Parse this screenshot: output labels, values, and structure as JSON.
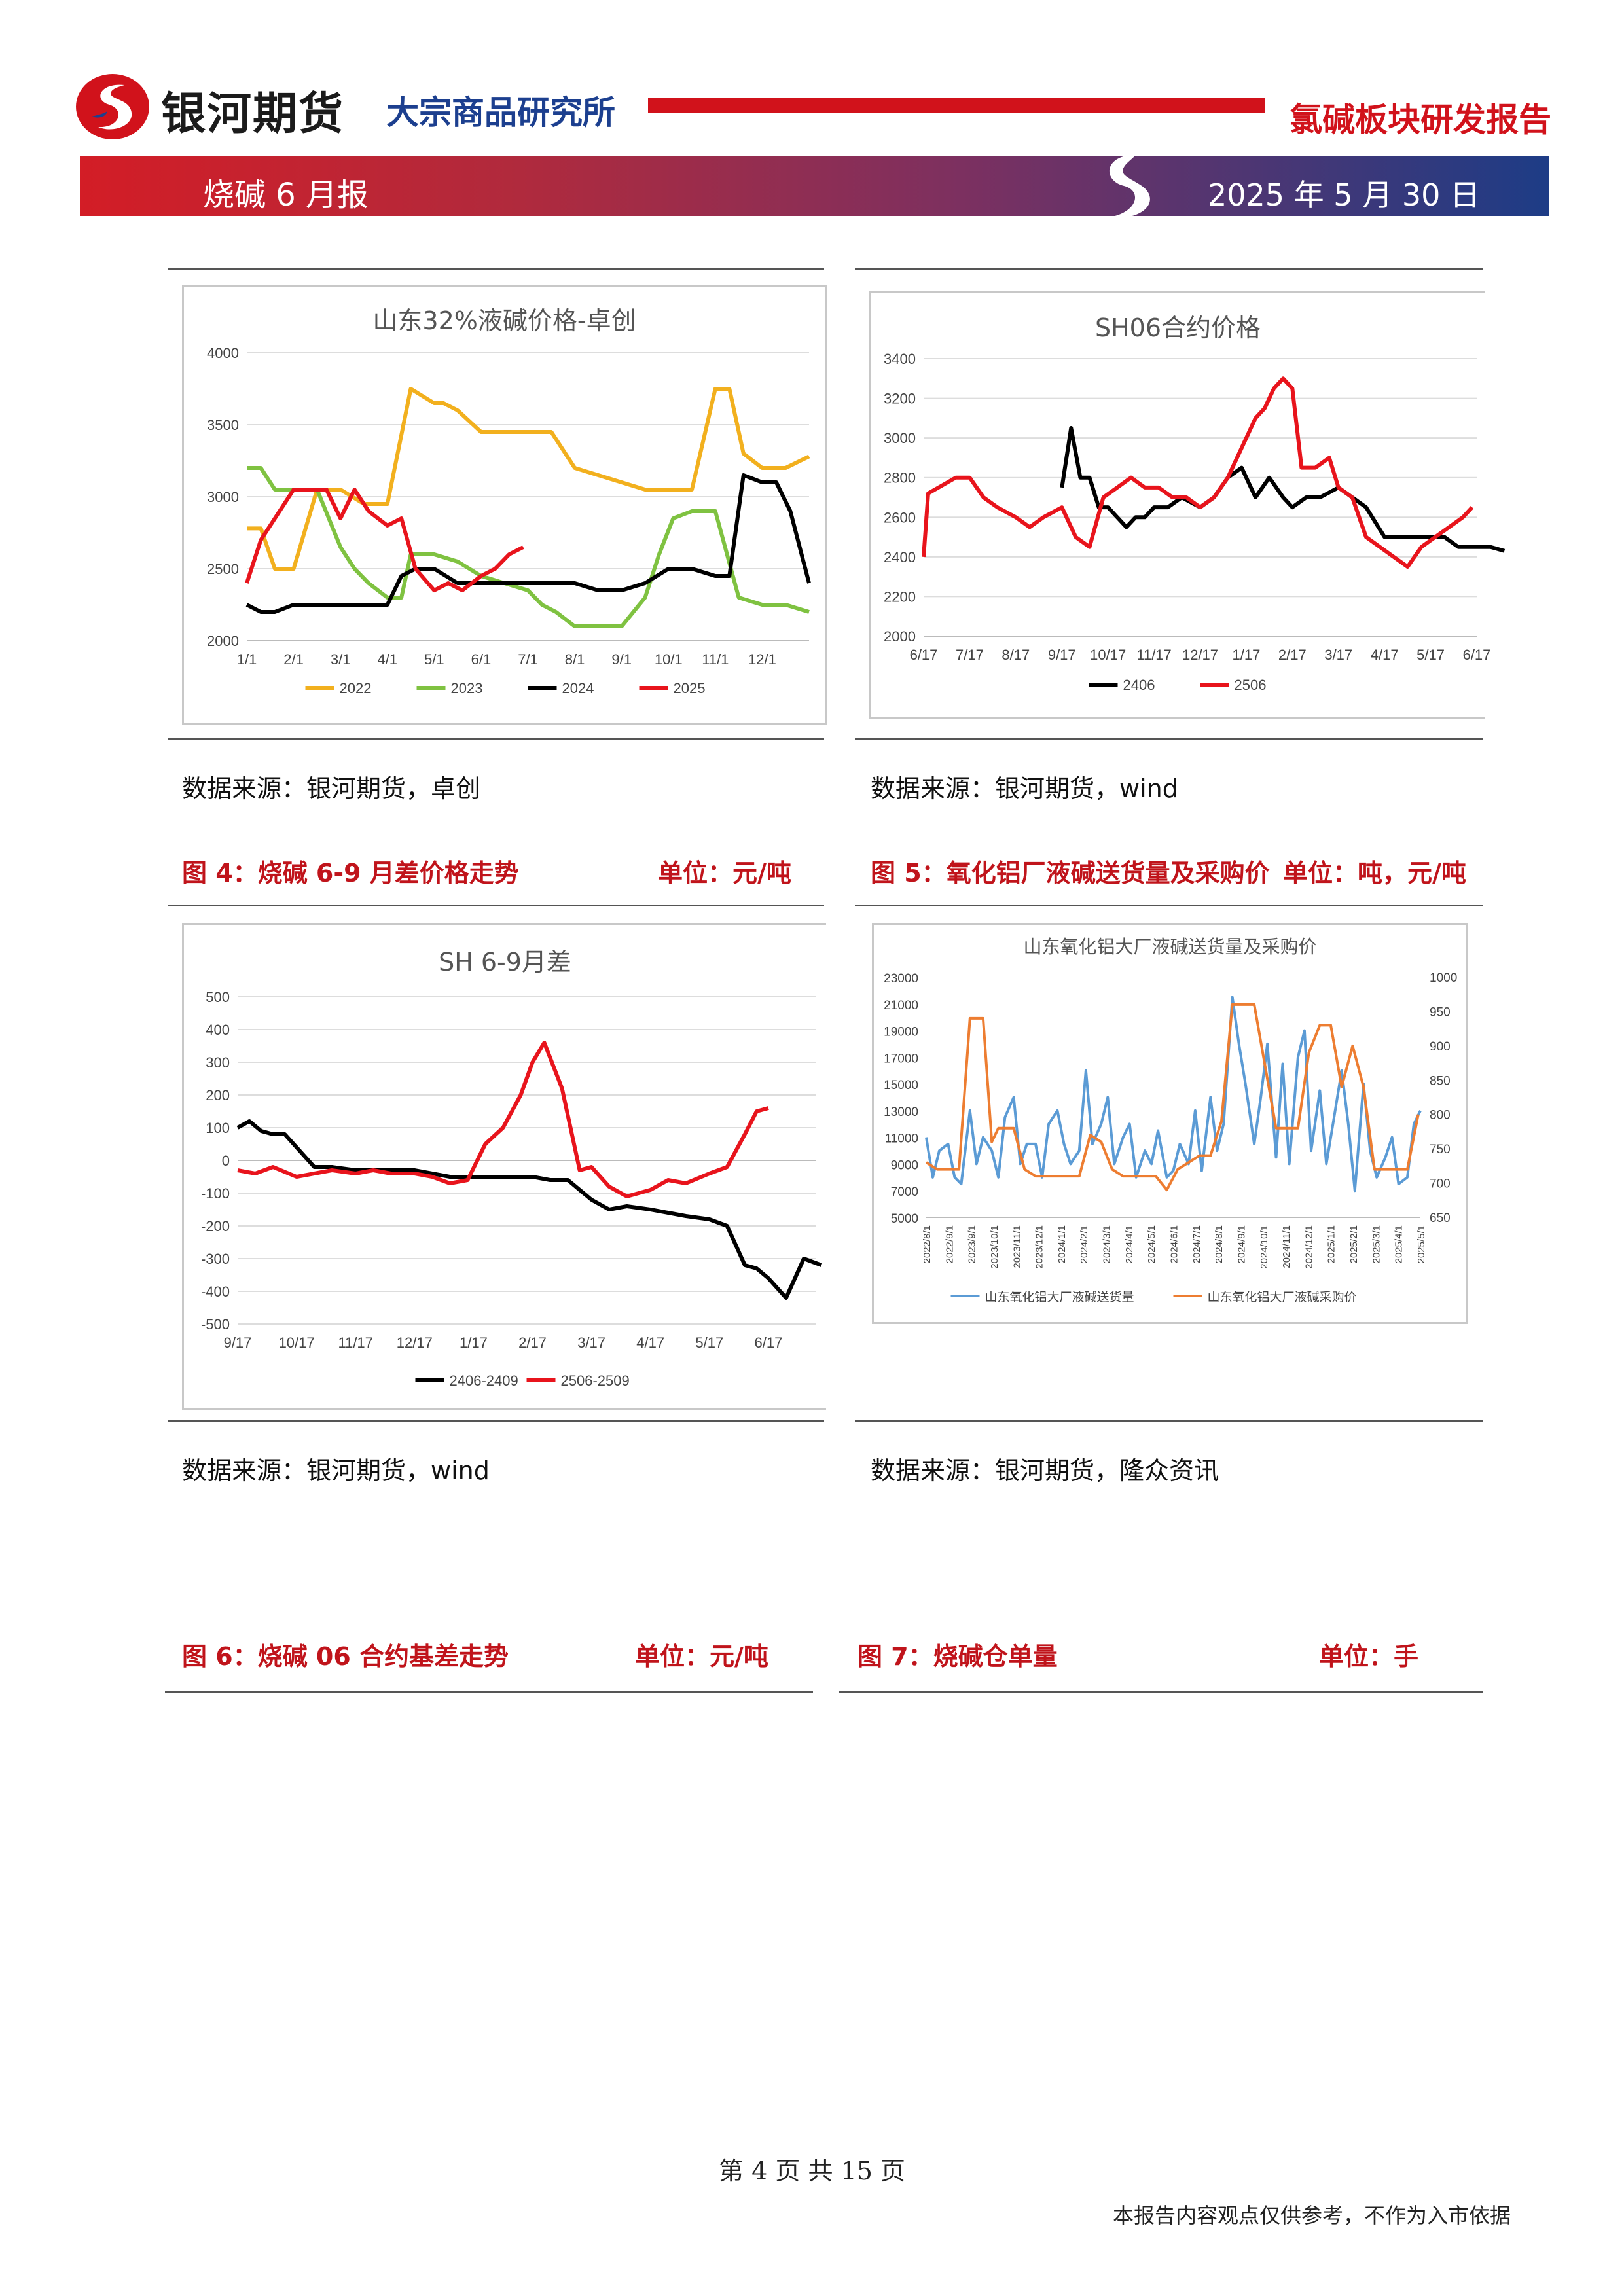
{
  "header": {
    "brand": "银河期货",
    "institute": "大宗商品研究所",
    "report_title": "氯碱板块研发报告",
    "brand_color": "#d1121b",
    "institute_color": "#1c3f8f"
  },
  "banner": {
    "title": "烧碱 6 月报",
    "date": "2025 年 5 月 30 日"
  },
  "charts": [
    {
      "source": "数据来源：银河期货，卓创",
      "chart_data": {
        "type": "line",
        "title": "山东32%液碱价格-卓创",
        "x_ticks": [
          "1/1",
          "2/1",
          "3/1",
          "4/1",
          "5/1",
          "6/1",
          "7/1",
          "8/1",
          "9/1",
          "10/1",
          "11/1",
          "12/1"
        ],
        "ylim": [
          2000,
          4000
        ],
        "y_ticks": [
          2000,
          2500,
          3000,
          3500,
          4000
        ],
        "grid": true,
        "legend_position": "bottom",
        "series": [
          {
            "name": "2022",
            "color": "#f2b01e",
            "x": [
              0,
              0.3,
              0.6,
              0.8,
              1,
              1.5,
              2,
              2.5,
              3,
              3.5,
              4,
              4.2,
              4.5,
              5,
              5.5,
              6,
              6.5,
              7,
              7.5,
              8,
              8.5,
              9,
              9.3,
              9.5,
              10,
              10.3,
              10.6,
              11,
              11.5,
              12
            ],
            "y": [
              2780,
              2780,
              2500,
              2500,
              2500,
              3050,
              3050,
              2950,
              2950,
              3750,
              3650,
              3650,
              3600,
              3450,
              3450,
              3450,
              3450,
              3200,
              3150,
              3100,
              3050,
              3050,
              3050,
              3050,
              3750,
              3750,
              3300,
              3200,
              3200,
              3280
            ]
          },
          {
            "name": "2023",
            "color": "#7fc241",
            "x": [
              0,
              0.3,
              0.6,
              1,
              1.5,
              2,
              2.3,
              2.6,
              3,
              3.3,
              3.5,
              4,
              4.5,
              5,
              5.5,
              6,
              6.3,
              6.6,
              7,
              7.3,
              7.6,
              8,
              8.5,
              8.8,
              9.1,
              9.5,
              10,
              10.5,
              11,
              11.5,
              12
            ],
            "y": [
              3200,
              3200,
              3050,
              3050,
              3050,
              2650,
              2500,
              2400,
              2300,
              2300,
              2600,
              2600,
              2550,
              2450,
              2400,
              2350,
              2250,
              2200,
              2100,
              2100,
              2100,
              2100,
              2300,
              2600,
              2850,
              2900,
              2900,
              2300,
              2250,
              2250,
              2200
            ]
          },
          {
            "name": "2024",
            "color": "#000000",
            "x": [
              0,
              0.3,
              0.6,
              1,
              1.5,
              2,
              2.5,
              3,
              3.3,
              3.6,
              4,
              4.5,
              5,
              5.5,
              6,
              6.5,
              7,
              7.5,
              8,
              8.5,
              9,
              9.5,
              10,
              10.3,
              10.6,
              11,
              11.3,
              11.6,
              12
            ],
            "y": [
              2250,
              2200,
              2200,
              2250,
              2250,
              2250,
              2250,
              2250,
              2450,
              2500,
              2500,
              2400,
              2400,
              2400,
              2400,
              2400,
              2400,
              2350,
              2350,
              2400,
              2500,
              2500,
              2450,
              2450,
              3150,
              3100,
              3100,
              2900,
              2400
            ]
          },
          {
            "name": "2025",
            "color": "#e8141c",
            "x": [
              0,
              0.3,
              0.7,
              1,
              1.3,
              1.7,
              2,
              2.3,
              2.6,
              3,
              3.3,
              3.6,
              4,
              4.3,
              4.6,
              5,
              5.3,
              5.6,
              5.9
            ],
            "y": [
              2400,
              2700,
              2900,
              3050,
              3050,
              3050,
              2850,
              3050,
              2900,
              2800,
              2850,
              2500,
              2350,
              2400,
              2350,
              2450,
              2500,
              2600,
              2650
            ]
          }
        ]
      }
    },
    {
      "source": "数据来源：银河期货，wind",
      "chart_data": {
        "type": "line",
        "title": "SH06合约价格",
        "x_ticks": [
          "6/17",
          "7/17",
          "8/17",
          "9/17",
          "10/17",
          "11/17",
          "12/17",
          "1/17",
          "2/17",
          "3/17",
          "4/17",
          "5/17",
          "6/17"
        ],
        "ylim": [
          2000,
          3400
        ],
        "y_ticks": [
          2000,
          2200,
          2400,
          2600,
          2800,
          3000,
          3200,
          3400
        ],
        "grid": true,
        "legend_position": "bottom",
        "series": [
          {
            "name": "2406",
            "color": "#000000",
            "x": [
              3,
              3.2,
              3.4,
              3.6,
              3.8,
              4,
              4.2,
              4.4,
              4.6,
              4.8,
              5,
              5.3,
              5.6,
              6,
              6.3,
              6.6,
              6.9,
              7.2,
              7.5,
              7.8,
              8,
              8.3,
              8.6,
              9,
              9.3,
              9.6,
              10,
              10.3,
              10.6,
              11,
              11.3,
              11.6,
              12,
              12.3,
              12.6
            ],
            "y": [
              2750,
              3050,
              2800,
              2800,
              2650,
              2650,
              2600,
              2550,
              2600,
              2600,
              2650,
              2650,
              2700,
              2650,
              2700,
              2800,
              2850,
              2700,
              2800,
              2700,
              2650,
              2700,
              2700,
              2750,
              2700,
              2650,
              2500,
              2500,
              2500,
              2500,
              2500,
              2450,
              2450,
              2450,
              2430
            ]
          },
          {
            "name": "2506",
            "color": "#e8141c",
            "x": [
              0,
              0.1,
              0.4,
              0.7,
              1,
              1.3,
              1.6,
              2,
              2.3,
              2.6,
              3,
              3.3,
              3.6,
              3.9,
              4.2,
              4.5,
              4.8,
              5.1,
              5.4,
              5.7,
              6,
              6.3,
              6.6,
              6.9,
              7.2,
              7.4,
              7.6,
              7.8,
              8,
              8.2,
              8.5,
              8.8,
              9,
              9.3,
              9.6,
              9.9,
              10.2,
              10.5,
              10.8,
              11.1,
              11.4,
              11.7,
              11.9
            ],
            "y": [
              2400,
              2720,
              2760,
              2800,
              2800,
              2700,
              2650,
              2600,
              2550,
              2600,
              2650,
              2500,
              2450,
              2700,
              2750,
              2800,
              2750,
              2750,
              2700,
              2700,
              2650,
              2700,
              2800,
              2950,
              3100,
              3150,
              3250,
              3300,
              3250,
              2850,
              2850,
              2900,
              2750,
              2700,
              2500,
              2450,
              2400,
              2350,
              2450,
              2500,
              2550,
              2600,
              2650
            ]
          }
        ]
      }
    },
    {
      "caption": "图 4：烧碱 6-9 月差价格走势",
      "unit": "单位：元/吨",
      "source": "数据来源：银河期货，wind",
      "chart_data": {
        "type": "line",
        "title": "SH 6-9月差",
        "x_ticks": [
          "9/17",
          "10/17",
          "11/17",
          "12/17",
          "1/17",
          "2/17",
          "3/17",
          "4/17",
          "5/17",
          "6/17"
        ],
        "ylim": [
          -500,
          500
        ],
        "y_ticks": [
          -500,
          -400,
          -300,
          -200,
          -100,
          0,
          100,
          200,
          300,
          400,
          500
        ],
        "grid": true,
        "legend_position": "bottom",
        "series": [
          {
            "name": "2406-2409",
            "color": "#000000",
            "x": [
              0,
              0.2,
              0.4,
              0.6,
              0.8,
              1,
              1.3,
              1.6,
              2,
              2.3,
              2.6,
              3,
              3.3,
              3.6,
              4,
              4.3,
              4.6,
              5,
              5.3,
              5.6,
              6,
              6.3,
              6.6,
              7,
              7.3,
              7.6,
              8,
              8.3,
              8.6,
              8.8,
              9,
              9.3,
              9.6,
              9.9
            ],
            "y": [
              100,
              120,
              90,
              80,
              80,
              40,
              -20,
              -20,
              -30,
              -30,
              -30,
              -30,
              -40,
              -50,
              -50,
              -50,
              -50,
              -50,
              -60,
              -60,
              -120,
              -150,
              -140,
              -150,
              -160,
              -170,
              -180,
              -200,
              -320,
              -330,
              -360,
              -420,
              -300,
              -320
            ]
          },
          {
            "name": "2506-2509",
            "color": "#e8141c",
            "x": [
              0,
              0.3,
              0.6,
              1,
              1.3,
              1.6,
              2,
              2.3,
              2.6,
              3,
              3.3,
              3.6,
              3.9,
              4.2,
              4.5,
              4.8,
              5,
              5.2,
              5.5,
              5.8,
              6,
              6.3,
              6.6,
              7,
              7.3,
              7.6,
              8,
              8.3,
              8.6,
              8.8,
              9
            ],
            "y": [
              -30,
              -40,
              -20,
              -50,
              -40,
              -30,
              -40,
              -30,
              -40,
              -40,
              -50,
              -70,
              -60,
              50,
              100,
              200,
              300,
              360,
              220,
              -30,
              -20,
              -80,
              -110,
              -90,
              -60,
              -70,
              -40,
              -20,
              80,
              150,
              160
            ]
          }
        ]
      }
    },
    {
      "caption": "图 5：氧化铝厂液碱送货量及采购价",
      "unit": "单位：吨，元/吨",
      "source": "数据来源：银河期货，隆众资讯",
      "chart_data": {
        "type": "line",
        "title": "山东氧化铝大厂液碱送货量及采购价",
        "x_ticks": [
          "2022/8/1",
          "2022/9/1",
          "2023/9/1",
          "2023/10/1",
          "2023/11/1",
          "2023/12/1",
          "2024/1/1",
          "2024/2/1",
          "2024/3/1",
          "2024/4/1",
          "2024/5/1",
          "2024/6/1",
          "2024/7/1",
          "2024/8/1",
          "2024/9/1",
          "2024/10/1",
          "2024/11/1",
          "2024/12/1",
          "2025/1/1",
          "2025/2/1",
          "2025/3/1",
          "2025/4/1",
          "2025/5/1"
        ],
        "y_left_ticks": [
          5000,
          7000,
          9000,
          11000,
          13000,
          15000,
          17000,
          19000,
          21000,
          23000
        ],
        "y_right_ticks": [
          650,
          700,
          750,
          800,
          850,
          900,
          950,
          1000
        ],
        "ylim": [
          5000,
          23000
        ],
        "y2lim": [
          650,
          1000
        ],
        "grid": false,
        "legend_position": "bottom",
        "series": [
          {
            "name": "山东氧化铝大厂液碱送货量",
            "axis": "left",
            "color": "#5b9bd5",
            "x": [
              0,
              0.3,
              0.6,
              1,
              1.3,
              1.6,
              2,
              2.3,
              2.6,
              3,
              3.3,
              3.6,
              4,
              4.3,
              4.6,
              5,
              5.3,
              5.6,
              6,
              6.3,
              6.6,
              7,
              7.3,
              7.6,
              8,
              8.3,
              8.6,
              9,
              9.3,
              9.6,
              10,
              10.3,
              10.6,
              11,
              11.3,
              11.6,
              12,
              12.3,
              12.6,
              13,
              13.3,
              13.6,
              14,
              14.3,
              14.6,
              15,
              15.3,
              15.6,
              16,
              16.3,
              16.6,
              17,
              17.3,
              17.6,
              18,
              18.3,
              18.6,
              19,
              19.3,
              19.6,
              20,
              20.3,
              20.6,
              21,
              21.3,
              21.6,
              22,
              22.3,
              22.6
            ],
            "y": [
              11000,
              8000,
              10000,
              10500,
              8000,
              7500,
              13000,
              9000,
              11000,
              10000,
              8000,
              12500,
              14000,
              9000,
              10500,
              10500,
              8000,
              12000,
              13000,
              10500,
              9000,
              10000,
              16000,
              10500,
              12000,
              14000,
              9000,
              11000,
              12000,
              8000,
              10000,
              9000,
              11500,
              8000,
              8500,
              10500,
              9000,
              13000,
              8500,
              14000,
              10000,
              12000,
              21500,
              18000,
              15000,
              10500,
              14000,
              18000,
              9500,
              16500,
              9000,
              17000,
              19000,
              10000,
              14500,
              9000,
              12000,
              16000,
              12000,
              7000,
              15000,
              10000,
              8000,
              9500,
              11000,
              7500,
              8000,
              12000,
              13000
            ]
          },
          {
            "name": "山东氧化铝大厂液碱采购价",
            "axis": "right",
            "color": "#ed7d31",
            "x": [
              0,
              0.5,
              1,
              1.5,
              2,
              2.3,
              2.6,
              3,
              3.3,
              3.6,
              4,
              4.5,
              5,
              5.5,
              6,
              6.5,
              7,
              7.5,
              8,
              8.5,
              9,
              9.5,
              10,
              10.5,
              11,
              11.5,
              12,
              12.5,
              13,
              13.5,
              14,
              14.5,
              15,
              15.5,
              16,
              16.5,
              17,
              17.5,
              18,
              18.5,
              19,
              19.5,
              20,
              20.5,
              21,
              21.5,
              22,
              22.5
            ],
            "y": [
              730,
              720,
              720,
              720,
              940,
              940,
              940,
              760,
              780,
              780,
              780,
              720,
              710,
              710,
              710,
              710,
              710,
              770,
              760,
              720,
              710,
              710,
              710,
              710,
              690,
              720,
              730,
              740,
              740,
              790,
              960,
              960,
              960,
              870,
              780,
              780,
              780,
              890,
              930,
              930,
              840,
              900,
              840,
              720,
              720,
              720,
              720,
              800
            ]
          }
        ]
      }
    },
    {
      "caption": "图 6：烧碱 06 合约基差走势",
      "unit": "单位：元/吨"
    },
    {
      "caption": "图 7：烧碱仓单量",
      "unit": "单位：手"
    }
  ],
  "footer": {
    "page_line": "第 4 页 共 15 页",
    "disclaimer": "本报告内容观点仅供参考，不作为入市依据"
  }
}
